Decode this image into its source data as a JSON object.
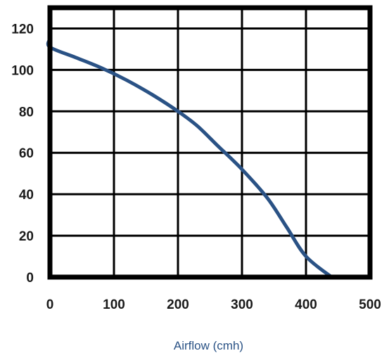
{
  "chart_data": {
    "type": "line",
    "title": "",
    "xlabel": "Airflow (cmh)",
    "ylabel": "",
    "xlim": [
      0,
      500
    ],
    "ylim": [
      0,
      130
    ],
    "x_ticks": [
      "0",
      "100",
      "200",
      "300",
      "400",
      "500"
    ],
    "y_ticks": [
      "0",
      "20",
      "40",
      "60",
      "80",
      "100",
      "120"
    ],
    "grid": true,
    "legend": "none",
    "series": [
      {
        "color": "#2a5285",
        "points": [
          [
            0,
            115
          ],
          [
            0,
            111
          ],
          [
            40,
            106
          ],
          [
            80,
            101
          ],
          [
            120,
            95
          ],
          [
            160,
            88
          ],
          [
            200,
            80
          ],
          [
            230,
            73
          ],
          [
            260,
            64
          ],
          [
            300,
            52
          ],
          [
            340,
            38
          ],
          [
            370,
            24
          ],
          [
            400,
            10
          ],
          [
            440,
            0
          ]
        ]
      }
    ],
    "colors": {
      "line": "#2a5285",
      "xlabel": "#2a5285",
      "grid": "#000000"
    }
  }
}
